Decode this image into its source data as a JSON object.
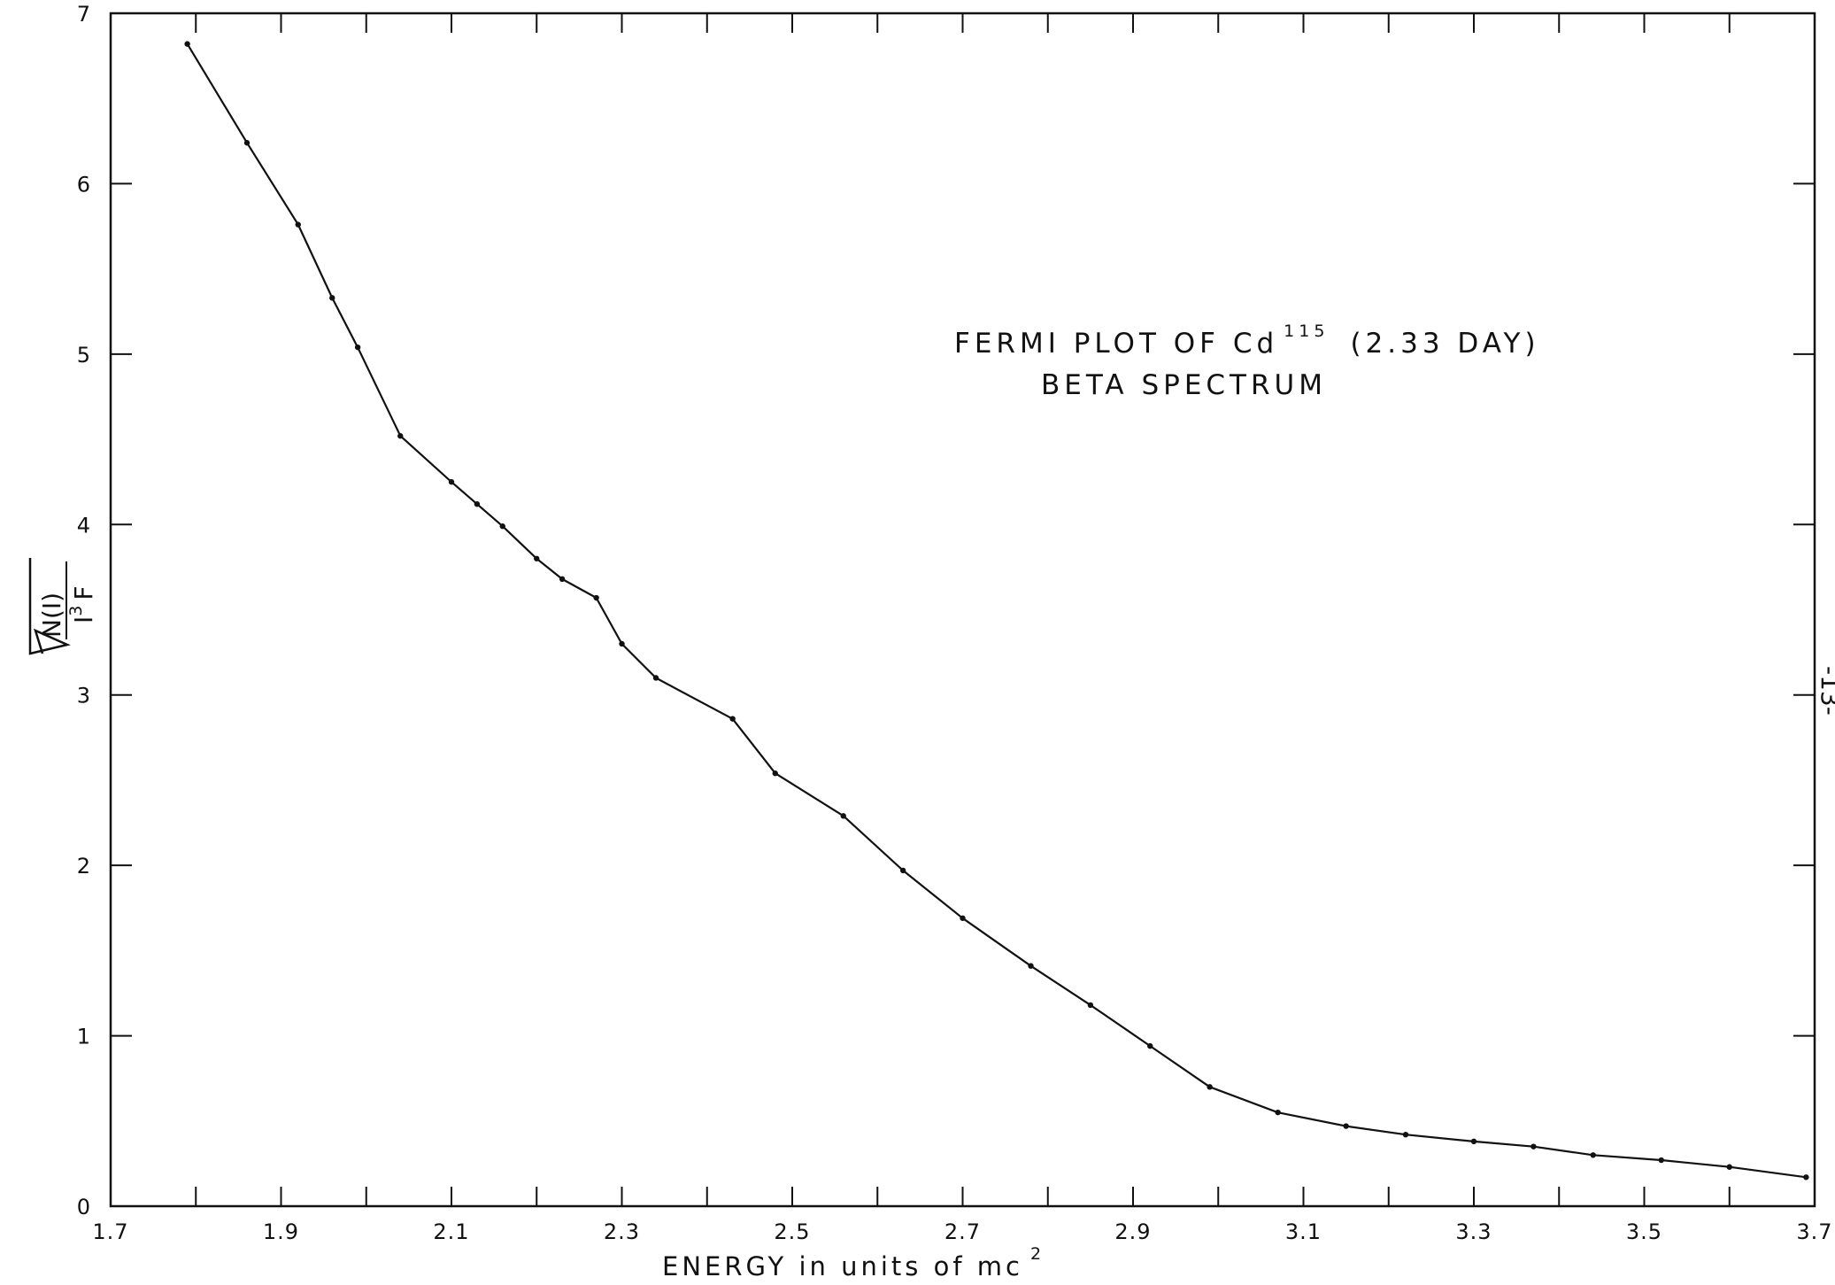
{
  "chart_data": {
    "type": "line",
    "title_line1": "FERMI PLOT OF Cd",
    "title_sup": "115",
    "title_line1_suffix": "(2.33 DAY)",
    "title_line2": "BETA SPECTRUM",
    "xlabel": "ENERGY in units of mc",
    "xlabel_sup": "2",
    "ylabel_numerator": "N(I)",
    "ylabel_denominator": "I",
    "ylabel_denominator_sup": "3",
    "ylabel_denominator_suffix": "F",
    "xlim": [
      1.7,
      3.7
    ],
    "ylim": [
      0,
      7
    ],
    "x_ticks": [
      1.7,
      1.9,
      2.1,
      2.3,
      2.5,
      2.7,
      2.9,
      3.1,
      3.3,
      3.5,
      3.7
    ],
    "x_tick_labels": [
      "1.7",
      "1.9",
      "2.1",
      "2.3",
      "2.5",
      "2.7",
      "2.9",
      "3.1",
      "3.3",
      "3.5",
      "3.7"
    ],
    "y_ticks": [
      0,
      1,
      2,
      3,
      4,
      5,
      6,
      7
    ],
    "y_tick_labels": [
      "0",
      "1",
      "2",
      "3",
      "4",
      "5",
      "6",
      "7"
    ],
    "x_minor_step": 0.1,
    "grid": false,
    "series": [
      {
        "x": [
          1.79,
          1.86,
          1.92,
          1.96,
          1.99,
          2.04,
          2.1,
          2.13,
          2.16,
          2.2,
          2.23,
          2.27,
          2.3,
          2.34,
          2.43,
          2.48,
          2.56,
          2.63,
          2.7,
          2.78,
          2.85,
          2.92,
          2.99,
          3.07,
          3.15,
          3.22,
          3.3,
          3.37,
          3.44,
          3.52,
          3.6,
          3.69
        ],
        "y": [
          6.82,
          6.24,
          5.76,
          5.33,
          5.04,
          4.52,
          4.25,
          4.12,
          3.99,
          3.8,
          3.68,
          3.57,
          3.3,
          3.1,
          2.86,
          2.54,
          2.29,
          1.97,
          1.69,
          1.41,
          1.18,
          0.94,
          0.7,
          0.55,
          0.47,
          0.42,
          0.38,
          0.35,
          0.3,
          0.27,
          0.23,
          0.17
        ]
      }
    ]
  },
  "page_mark": "-13-"
}
